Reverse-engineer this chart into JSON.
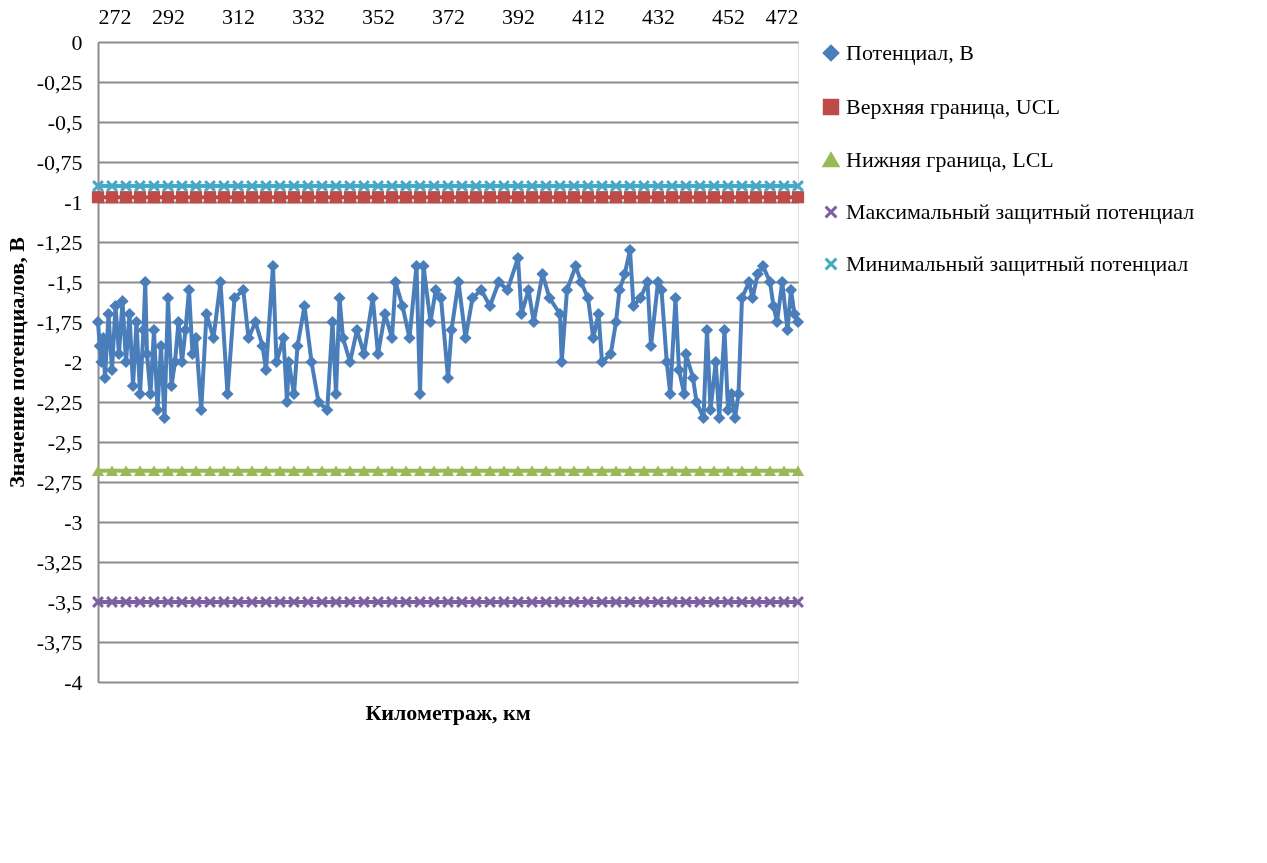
{
  "chart_data": {
    "type": "line",
    "xlabel": "Километраж, км",
    "ylabel": "Значение потенциалов, В",
    "x": [
      272,
      272.5,
      273,
      273.5,
      274,
      275,
      276,
      277,
      278,
      279,
      280,
      281,
      282,
      283,
      284,
      285,
      285.5,
      286,
      287,
      288,
      289,
      290,
      291,
      292,
      293,
      294,
      295,
      296,
      297,
      298,
      299,
      300,
      301.5,
      303,
      305,
      307,
      309,
      311,
      313.5,
      315,
      317,
      319,
      320,
      322,
      323,
      325,
      326,
      326.5,
      328,
      329,
      331,
      333,
      335,
      337.5,
      339,
      340,
      341,
      342,
      344,
      346,
      348,
      350.5,
      352,
      354,
      356,
      357,
      359,
      361,
      363,
      364,
      365,
      367,
      368.5,
      370,
      372,
      373,
      375,
      377,
      379,
      381.5,
      384,
      386.5,
      389,
      392,
      393,
      395,
      396.5,
      399,
      401,
      404,
      404.5,
      406,
      408.5,
      410,
      412,
      413.5,
      415,
      416,
      418.5,
      420,
      421,
      422.5,
      424,
      425,
      427,
      429,
      430,
      432,
      433,
      434.5,
      435.5,
      437,
      438,
      439.5,
      440,
      442,
      443,
      445,
      446,
      447,
      448.5,
      449.5,
      451,
      452,
      453,
      454,
      455,
      456,
      458,
      459,
      460.5,
      462,
      464,
      465,
      466,
      467.5,
      469,
      470,
      471,
      472
    ],
    "series": [
      {
        "name": "Потенциал, В",
        "color": "#4a7ebb",
        "marker": "diamond",
        "values": [
          -1.75,
          -1.9,
          -2.0,
          -1.85,
          -2.1,
          -1.7,
          -2.05,
          -1.65,
          -1.95,
          -1.62,
          -2.0,
          -1.7,
          -2.15,
          -1.75,
          -2.2,
          -1.8,
          -1.5,
          -1.95,
          -2.2,
          -1.8,
          -2.3,
          -1.9,
          -2.35,
          -1.6,
          -2.15,
          -2.0,
          -1.75,
          -2.0,
          -1.8,
          -1.55,
          -1.95,
          -1.85,
          -2.3,
          -1.7,
          -1.85,
          -1.5,
          -2.2,
          -1.6,
          -1.55,
          -1.85,
          -1.75,
          -1.9,
          -2.05,
          -1.4,
          -2.0,
          -1.85,
          -2.25,
          -2.0,
          -2.2,
          -1.9,
          -1.65,
          -2.0,
          -2.25,
          -2.3,
          -1.75,
          -2.2,
          -1.6,
          -1.85,
          -2.0,
          -1.8,
          -1.95,
          -1.6,
          -1.95,
          -1.7,
          -1.85,
          -1.5,
          -1.65,
          -1.85,
          -1.4,
          -2.2,
          -1.4,
          -1.75,
          -1.55,
          -1.6,
          -2.1,
          -1.8,
          -1.5,
          -1.85,
          -1.6,
          -1.55,
          -1.65,
          -1.5,
          -1.55,
          -1.35,
          -1.7,
          -1.55,
          -1.75,
          -1.45,
          -1.6,
          -1.7,
          -2.0,
          -1.55,
          -1.4,
          -1.5,
          -1.6,
          -1.85,
          -1.7,
          -2.0,
          -1.95,
          -1.75,
          -1.55,
          -1.45,
          -1.3,
          -1.65,
          -1.6,
          -1.5,
          -1.9,
          -1.5,
          -1.55,
          -2.0,
          -2.2,
          -1.6,
          -2.05,
          -2.2,
          -1.95,
          -2.1,
          -2.25,
          -2.35,
          -1.8,
          -2.3,
          -2.0,
          -2.35,
          -1.8,
          -2.3,
          -2.2,
          -2.35,
          -2.2,
          -1.6,
          -1.5,
          -1.6,
          -1.45,
          -1.4,
          -1.5,
          -1.65,
          -1.75,
          -1.5,
          -1.8,
          -1.55,
          -1.7,
          -1.75
        ]
      },
      {
        "name": "Верхняя граница, UCL",
        "color": "#be4b48",
        "marker": "square",
        "x": [
          272,
          276,
          280,
          284,
          288,
          292,
          296,
          300,
          304,
          308,
          312,
          316,
          320,
          324,
          328,
          332,
          336,
          340,
          344,
          348,
          352,
          356,
          360,
          364,
          368,
          372,
          376,
          380,
          384,
          388,
          392,
          396,
          400,
          404,
          408,
          412,
          416,
          420,
          424,
          428,
          432,
          436,
          440,
          444,
          448,
          452,
          456,
          460,
          464,
          468,
          472
        ],
        "values": [
          -0.97,
          -0.97,
          -0.97,
          -0.97,
          -0.97,
          -0.97,
          -0.97,
          -0.97,
          -0.97,
          -0.97,
          -0.97,
          -0.97,
          -0.97,
          -0.97,
          -0.97,
          -0.97,
          -0.97,
          -0.97,
          -0.97,
          -0.97,
          -0.97,
          -0.97,
          -0.97,
          -0.97,
          -0.97,
          -0.97,
          -0.97,
          -0.97,
          -0.97,
          -0.97,
          -0.97,
          -0.97,
          -0.97,
          -0.97,
          -0.97,
          -0.97,
          -0.97,
          -0.97,
          -0.97,
          -0.97,
          -0.97,
          -0.97,
          -0.97,
          -0.97,
          -0.97,
          -0.97,
          -0.97,
          -0.97,
          -0.97,
          -0.97,
          -0.97
        ]
      },
      {
        "name": "Нижняя граница, LCL",
        "color": "#98b954",
        "marker": "triangle",
        "x": [
          272,
          276,
          280,
          284,
          288,
          292,
          296,
          300,
          304,
          308,
          312,
          316,
          320,
          324,
          328,
          332,
          336,
          340,
          344,
          348,
          352,
          356,
          360,
          364,
          368,
          372,
          376,
          380,
          384,
          388,
          392,
          396,
          400,
          404,
          408,
          412,
          416,
          420,
          424,
          428,
          432,
          436,
          440,
          444,
          448,
          452,
          456,
          460,
          464,
          468,
          472
        ],
        "values": [
          -2.68,
          -2.68,
          -2.68,
          -2.68,
          -2.68,
          -2.68,
          -2.68,
          -2.68,
          -2.68,
          -2.68,
          -2.68,
          -2.68,
          -2.68,
          -2.68,
          -2.68,
          -2.68,
          -2.68,
          -2.68,
          -2.68,
          -2.68,
          -2.68,
          -2.68,
          -2.68,
          -2.68,
          -2.68,
          -2.68,
          -2.68,
          -2.68,
          -2.68,
          -2.68,
          -2.68,
          -2.68,
          -2.68,
          -2.68,
          -2.68,
          -2.68,
          -2.68,
          -2.68,
          -2.68,
          -2.68,
          -2.68,
          -2.68,
          -2.68,
          -2.68,
          -2.68,
          -2.68,
          -2.68,
          -2.68,
          -2.68,
          -2.68,
          -2.68
        ]
      },
      {
        "name": "Максимальный защитный потенциал",
        "color": "#7d60a0",
        "marker": "cross",
        "x": [
          272,
          276,
          280,
          284,
          288,
          292,
          296,
          300,
          304,
          308,
          312,
          316,
          320,
          324,
          328,
          332,
          336,
          340,
          344,
          348,
          352,
          356,
          360,
          364,
          368,
          372,
          376,
          380,
          384,
          388,
          392,
          396,
          400,
          404,
          408,
          412,
          416,
          420,
          424,
          428,
          432,
          436,
          440,
          444,
          448,
          452,
          456,
          460,
          464,
          468,
          472
        ],
        "values": [
          -3.5,
          -3.5,
          -3.5,
          -3.5,
          -3.5,
          -3.5,
          -3.5,
          -3.5,
          -3.5,
          -3.5,
          -3.5,
          -3.5,
          -3.5,
          -3.5,
          -3.5,
          -3.5,
          -3.5,
          -3.5,
          -3.5,
          -3.5,
          -3.5,
          -3.5,
          -3.5,
          -3.5,
          -3.5,
          -3.5,
          -3.5,
          -3.5,
          -3.5,
          -3.5,
          -3.5,
          -3.5,
          -3.5,
          -3.5,
          -3.5,
          -3.5,
          -3.5,
          -3.5,
          -3.5,
          -3.5,
          -3.5,
          -3.5,
          -3.5,
          -3.5,
          -3.5,
          -3.5,
          -3.5,
          -3.5,
          -3.5,
          -3.5,
          -3.5
        ]
      },
      {
        "name": "Минимальный защитный потенциал",
        "color": "#46aac5",
        "marker": "cross",
        "x": [
          272,
          276,
          280,
          284,
          288,
          292,
          296,
          300,
          304,
          308,
          312,
          316,
          320,
          324,
          328,
          332,
          336,
          340,
          344,
          348,
          352,
          356,
          360,
          364,
          368,
          372,
          376,
          380,
          384,
          388,
          392,
          396,
          400,
          404,
          408,
          412,
          416,
          420,
          424,
          428,
          432,
          436,
          440,
          444,
          448,
          452,
          456,
          460,
          464,
          468,
          472
        ],
        "values": [
          -0.9,
          -0.9,
          -0.9,
          -0.9,
          -0.9,
          -0.9,
          -0.9,
          -0.9,
          -0.9,
          -0.9,
          -0.9,
          -0.9,
          -0.9,
          -0.9,
          -0.9,
          -0.9,
          -0.9,
          -0.9,
          -0.9,
          -0.9,
          -0.9,
          -0.9,
          -0.9,
          -0.9,
          -0.9,
          -0.9,
          -0.9,
          -0.9,
          -0.9,
          -0.9,
          -0.9,
          -0.9,
          -0.9,
          -0.9,
          -0.9,
          -0.9,
          -0.9,
          -0.9,
          -0.9,
          -0.9,
          -0.9,
          -0.9,
          -0.9,
          -0.9,
          -0.9,
          -0.9,
          -0.9,
          -0.9,
          -0.9,
          -0.9,
          -0.9
        ]
      }
    ],
    "xlim": [
      272,
      472
    ],
    "xticks": [
      272,
      292,
      312,
      332,
      352,
      372,
      392,
      412,
      432,
      452,
      472
    ],
    "ylim": [
      -4,
      0
    ],
    "yticks": [
      0,
      {
        "value": -0.25,
        "label": "-0,25"
      },
      {
        "value": -0.5,
        "label": "-0,5"
      },
      {
        "value": -0.75,
        "label": "-0,75"
      },
      -1,
      {
        "value": -1.25,
        "label": "-1,25"
      },
      {
        "value": -1.5,
        "label": "-1,5"
      },
      {
        "value": -1.75,
        "label": "-1,75"
      },
      -2,
      {
        "value": -2.25,
        "label": "-2,25"
      },
      {
        "value": -2.5,
        "label": "-2,5"
      },
      {
        "value": -2.75,
        "label": "-2,75"
      },
      -3,
      {
        "value": -3.25,
        "label": "-3,25"
      },
      {
        "value": -3.5,
        "label": "-3,5"
      },
      {
        "value": -3.75,
        "label": "-3,75"
      },
      -4
    ],
    "grid": "y",
    "legend": "right",
    "line_style": "solid"
  }
}
